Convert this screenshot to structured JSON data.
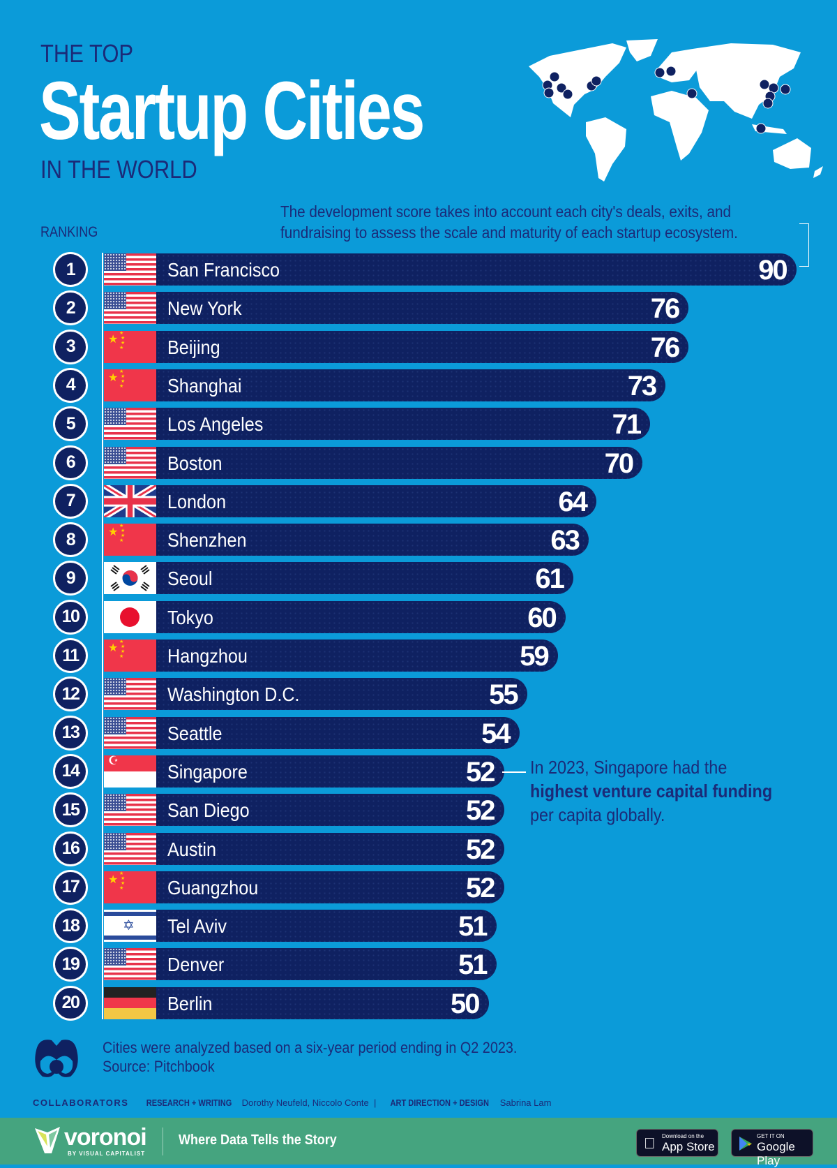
{
  "header": {
    "pre_title": "THE TOP",
    "title": "Startup Cities",
    "post_title": "IN THE WORLD"
  },
  "description": [
    "The development score takes into account each city's deals, exits, and",
    "fundraising to assess the scale and maturity of each startup ecosystem."
  ],
  "ranking_label": "RANKING",
  "colors": {
    "background": "#0b9bd9",
    "bar": "#0f2161",
    "footer_band": "#45a47f",
    "text_dark": "#1b2a78"
  },
  "chart_data": {
    "type": "bar",
    "orientation": "horizontal",
    "xlim": [
      0,
      90
    ],
    "categories": [
      "San Francisco",
      "New York",
      "Beijing",
      "Shanghai",
      "Los Angeles",
      "Boston",
      "London",
      "Shenzhen",
      "Seoul",
      "Tokyo",
      "Hangzhou",
      "Washington D.C.",
      "Seattle",
      "Singapore",
      "San Diego",
      "Austin",
      "Guangzhou",
      "Tel Aviv",
      "Denver",
      "Berlin"
    ],
    "ranks": [
      "1",
      "2",
      "3",
      "4",
      "5",
      "6",
      "7",
      "8",
      "9",
      "10",
      "11",
      "12",
      "13",
      "14",
      "15",
      "16",
      "17",
      "18",
      "19",
      "20"
    ],
    "values": [
      90,
      76,
      76,
      73,
      71,
      70,
      64,
      63,
      61,
      60,
      59,
      55,
      54,
      52,
      52,
      52,
      52,
      51,
      51,
      50
    ],
    "flags": [
      "us-flag",
      "us-flag",
      "china-flag",
      "china-flag",
      "us-flag",
      "us-flag",
      "uk-flag",
      "china-flag",
      "south-korea-flag",
      "japan-flag",
      "china-flag",
      "us-flag",
      "us-flag",
      "singapore-flag",
      "us-flag",
      "us-flag",
      "china-flag",
      "israel-flag",
      "us-flag",
      "germany-flag"
    ]
  },
  "annotation": {
    "line1": "In 2023, Singapore had the",
    "line2": "highest venture capital funding",
    "line3": "per capita globally."
  },
  "footnote": {
    "line1": "Cities were analyzed based on a six-year period ending in Q2 2023.",
    "line2": "Source: Pitchbook"
  },
  "collaborators": {
    "label": "COLLABORATORS",
    "research_label": "RESEARCH + WRITING",
    "research": "Dorothy Neufeld, Niccolo Conte",
    "sep": "|",
    "design_label": "ART DIRECTION + DESIGN",
    "design": "Sabrina Lam"
  },
  "brand": {
    "name": "voronoi",
    "sub": "BY VISUAL CAPITALIST",
    "tagline": "Where Data Tells the Story"
  },
  "stores": {
    "apple_small": "Download on the",
    "apple": "App Store",
    "google_small": "GET IT ON",
    "google": "Google Play"
  }
}
